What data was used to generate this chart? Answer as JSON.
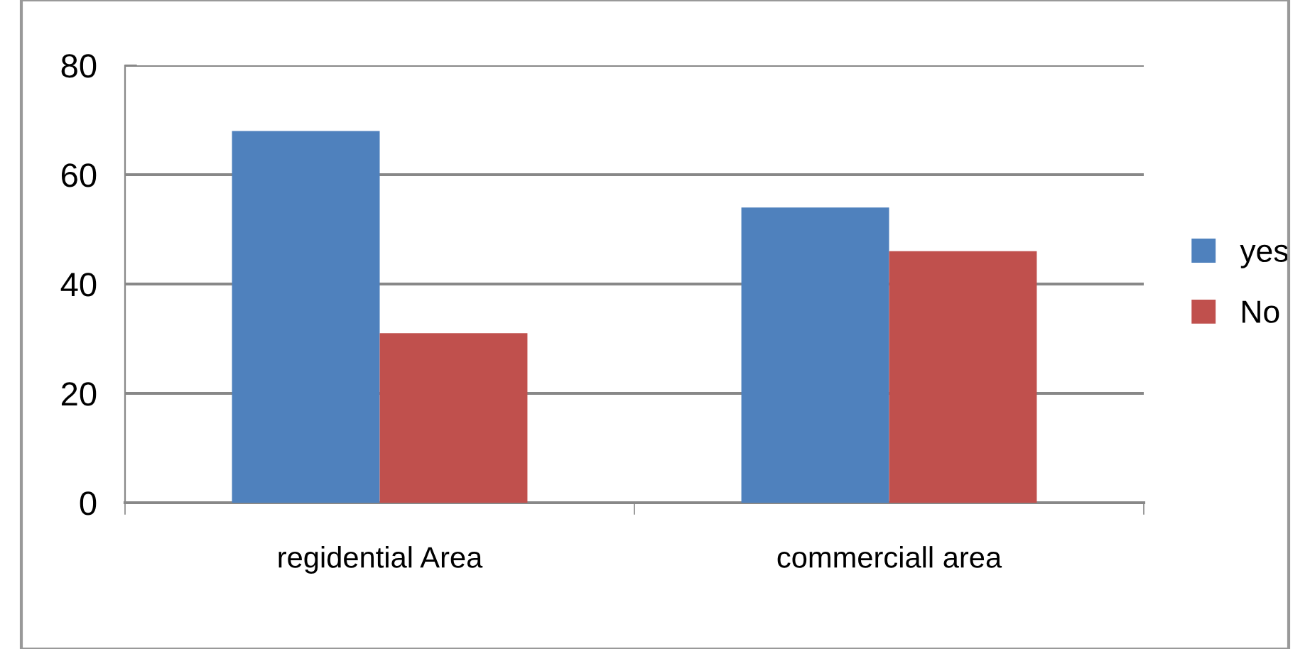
{
  "chart_data": {
    "type": "bar",
    "categories": [
      "regidential Area",
      "commerciall area"
    ],
    "series": [
      {
        "name": "yes",
        "color": "#4f81bd",
        "values": [
          68,
          54
        ]
      },
      {
        "name": "No",
        "color": "#c0504d",
        "values": [
          31,
          46
        ]
      }
    ],
    "ylim": [
      0,
      80
    ],
    "yticks": [
      0,
      20,
      40,
      60,
      80
    ],
    "grid": "y",
    "legend": "right"
  }
}
